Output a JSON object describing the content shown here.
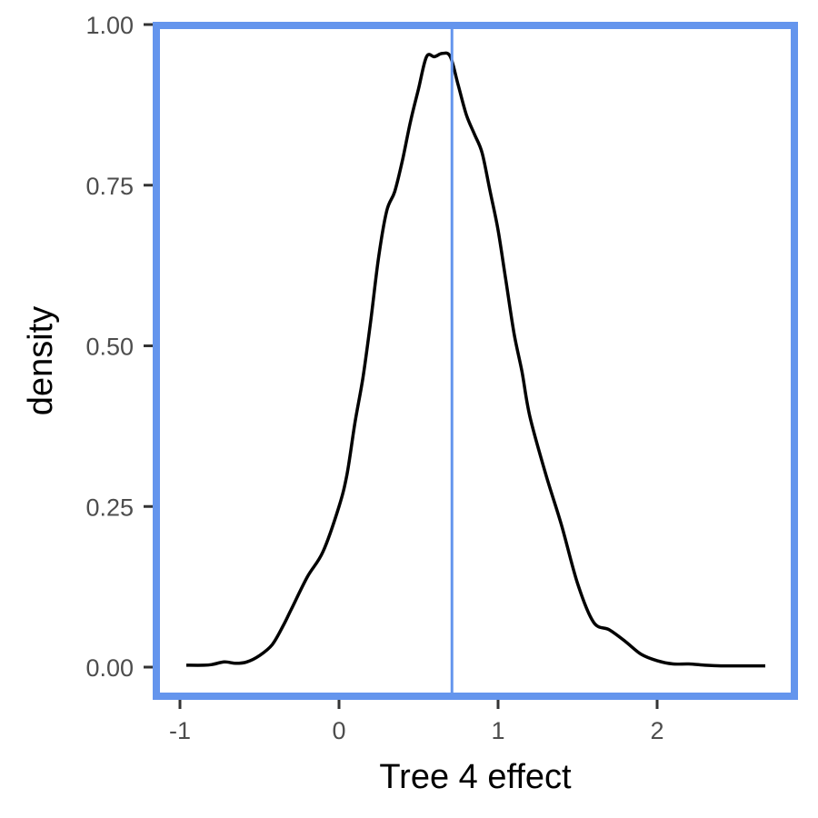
{
  "chart_data": {
    "type": "line",
    "xlabel": "Tree 4 effect",
    "ylabel": "density",
    "xlim": [
      -1.0,
      2.8
    ],
    "ylim": [
      0,
      1.0
    ],
    "x_ticks": [
      -1,
      0,
      1,
      2
    ],
    "x_tick_labels": [
      "-1",
      "0",
      "1",
      "2"
    ],
    "y_ticks": [
      0,
      0.25,
      0.5,
      0.75,
      1.0
    ],
    "y_tick_labels": [
      "0.00",
      "0.25",
      "0.50",
      "0.75",
      "1.00"
    ],
    "grid": false,
    "vline": {
      "x": 0.71,
      "color": "#6495ED"
    },
    "panel_border_color": "#6495ED",
    "line_color": "#000000",
    "series": [
      {
        "x": [
          -0.96,
          -0.85,
          -0.8,
          -0.72,
          -0.65,
          -0.58,
          -0.5,
          -0.42,
          -0.35,
          -0.3,
          -0.2,
          -0.1,
          0.0,
          0.05,
          0.1,
          0.15,
          0.2,
          0.25,
          0.3,
          0.35,
          0.4,
          0.45,
          0.5,
          0.55,
          0.6,
          0.65,
          0.7,
          0.75,
          0.8,
          0.85,
          0.9,
          0.95,
          1.0,
          1.05,
          1.1,
          1.15,
          1.2,
          1.3,
          1.4,
          1.5,
          1.6,
          1.7,
          1.8,
          1.9,
          2.0,
          2.1,
          2.2,
          2.3,
          2.4,
          2.5,
          2.6,
          2.68
        ],
        "y": [
          0.003,
          0.003,
          0.004,
          0.008,
          0.006,
          0.008,
          0.018,
          0.035,
          0.065,
          0.09,
          0.14,
          0.18,
          0.25,
          0.3,
          0.38,
          0.45,
          0.54,
          0.64,
          0.71,
          0.74,
          0.79,
          0.85,
          0.9,
          0.95,
          0.95,
          0.955,
          0.95,
          0.905,
          0.86,
          0.83,
          0.8,
          0.74,
          0.68,
          0.6,
          0.52,
          0.46,
          0.39,
          0.3,
          0.22,
          0.13,
          0.07,
          0.058,
          0.04,
          0.02,
          0.01,
          0.005,
          0.005,
          0.003,
          0.002,
          0.002,
          0.002,
          0.002
        ]
      }
    ]
  }
}
